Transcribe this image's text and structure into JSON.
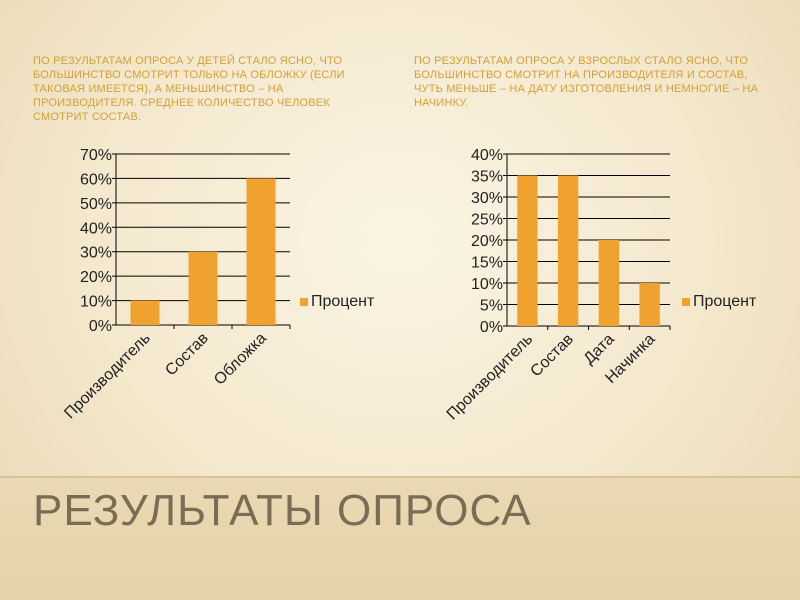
{
  "slide": {
    "title": "Результаты опроса",
    "caption_left": "По результатам опроса у детей стало ясно, что большинство смотрит только на обложку (если таковая имеется), а меньшинство – на производителя. Среднее количество человек смотрит состав.",
    "caption_right": "По результатам опроса у взрослых стало ясно, что большинство смотрит на производителя и состав, чуть меньше – на дату изготовления и немногие – на начинку."
  },
  "colors": {
    "bar": "#f0a22e",
    "grid": "#000000",
    "caption": "#d4a036",
    "title": "#7a6d55"
  },
  "chart_data": [
    {
      "type": "bar",
      "categories": [
        "Производитель",
        "Состав",
        "Обложка"
      ],
      "series": [
        {
          "name": "Процент",
          "values": [
            0.1,
            0.3,
            0.6
          ]
        }
      ],
      "ylim": [
        0,
        0.7
      ],
      "yticks": [
        0,
        0.1,
        0.2,
        0.3,
        0.4,
        0.5,
        0.6,
        0.7
      ],
      "ytick_labels": [
        "0%",
        "10%",
        "20%",
        "30%",
        "40%",
        "50%",
        "60%",
        "70%"
      ],
      "grid": true,
      "legend": "right"
    },
    {
      "type": "bar",
      "categories": [
        "Производитель",
        "Состав",
        "Дата",
        "Начинка"
      ],
      "series": [
        {
          "name": "Процент",
          "values": [
            0.35,
            0.35,
            0.2,
            0.1
          ]
        }
      ],
      "ylim": [
        0,
        0.4
      ],
      "yticks": [
        0,
        0.05,
        0.1,
        0.15,
        0.2,
        0.25,
        0.3,
        0.35,
        0.4
      ],
      "ytick_labels": [
        "0%",
        "5%",
        "10%",
        "15%",
        "20%",
        "25%",
        "30%",
        "35%",
        "40%"
      ],
      "grid": true,
      "legend": "right"
    }
  ]
}
